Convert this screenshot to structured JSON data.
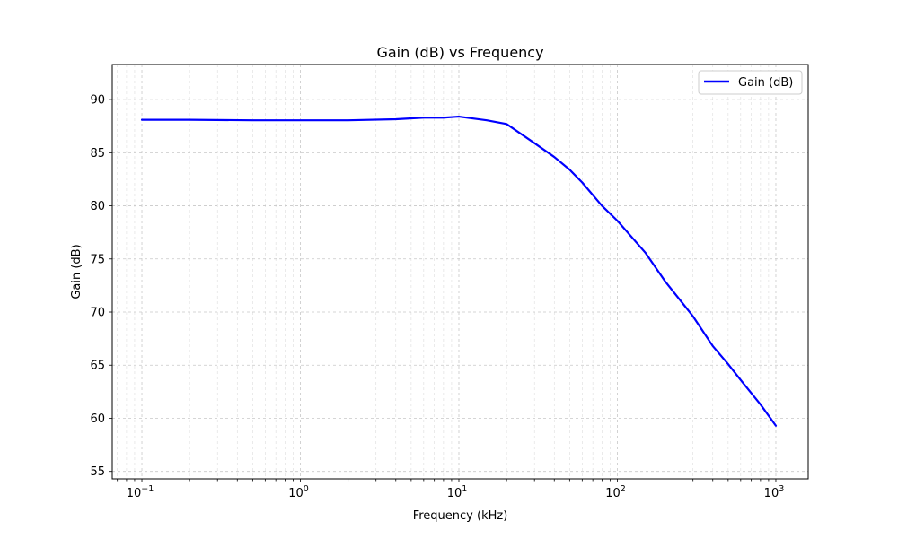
{
  "chart_data": {
    "type": "line",
    "title": "Gain (dB) vs Frequency",
    "xlabel": "Frequency (kHz)",
    "ylabel": "Gain (dB)",
    "x_scale": "log",
    "xlim": [
      0.065,
      1600
    ],
    "ylim": [
      54.3,
      93.3
    ],
    "x_ticks": [
      0.1,
      1,
      10,
      100,
      1000
    ],
    "x_tick_labels": [
      {
        "base": "10",
        "exp": "−1"
      },
      {
        "base": "10",
        "exp": "0"
      },
      {
        "base": "10",
        "exp": "1"
      },
      {
        "base": "10",
        "exp": "2"
      },
      {
        "base": "10",
        "exp": "3"
      }
    ],
    "y_ticks": [
      55,
      60,
      65,
      70,
      75,
      80,
      85,
      90
    ],
    "grid": true,
    "legend_position": "top-right",
    "series": [
      {
        "name": "Gain (dB)",
        "color": "#0000ff",
        "x": [
          0.1,
          0.2,
          0.5,
          1,
          2,
          4,
          6,
          8,
          10,
          15,
          20,
          30,
          40,
          50,
          60,
          80,
          100,
          150,
          200,
          300,
          400,
          500,
          600,
          800,
          1000
        ],
        "y": [
          88.1,
          88.1,
          88.05,
          88.05,
          88.05,
          88.15,
          88.3,
          88.3,
          88.4,
          88.05,
          87.7,
          85.9,
          84.6,
          83.4,
          82.2,
          80.0,
          78.6,
          75.6,
          72.9,
          69.6,
          66.8,
          65.1,
          63.6,
          61.3,
          59.3
        ]
      }
    ]
  }
}
